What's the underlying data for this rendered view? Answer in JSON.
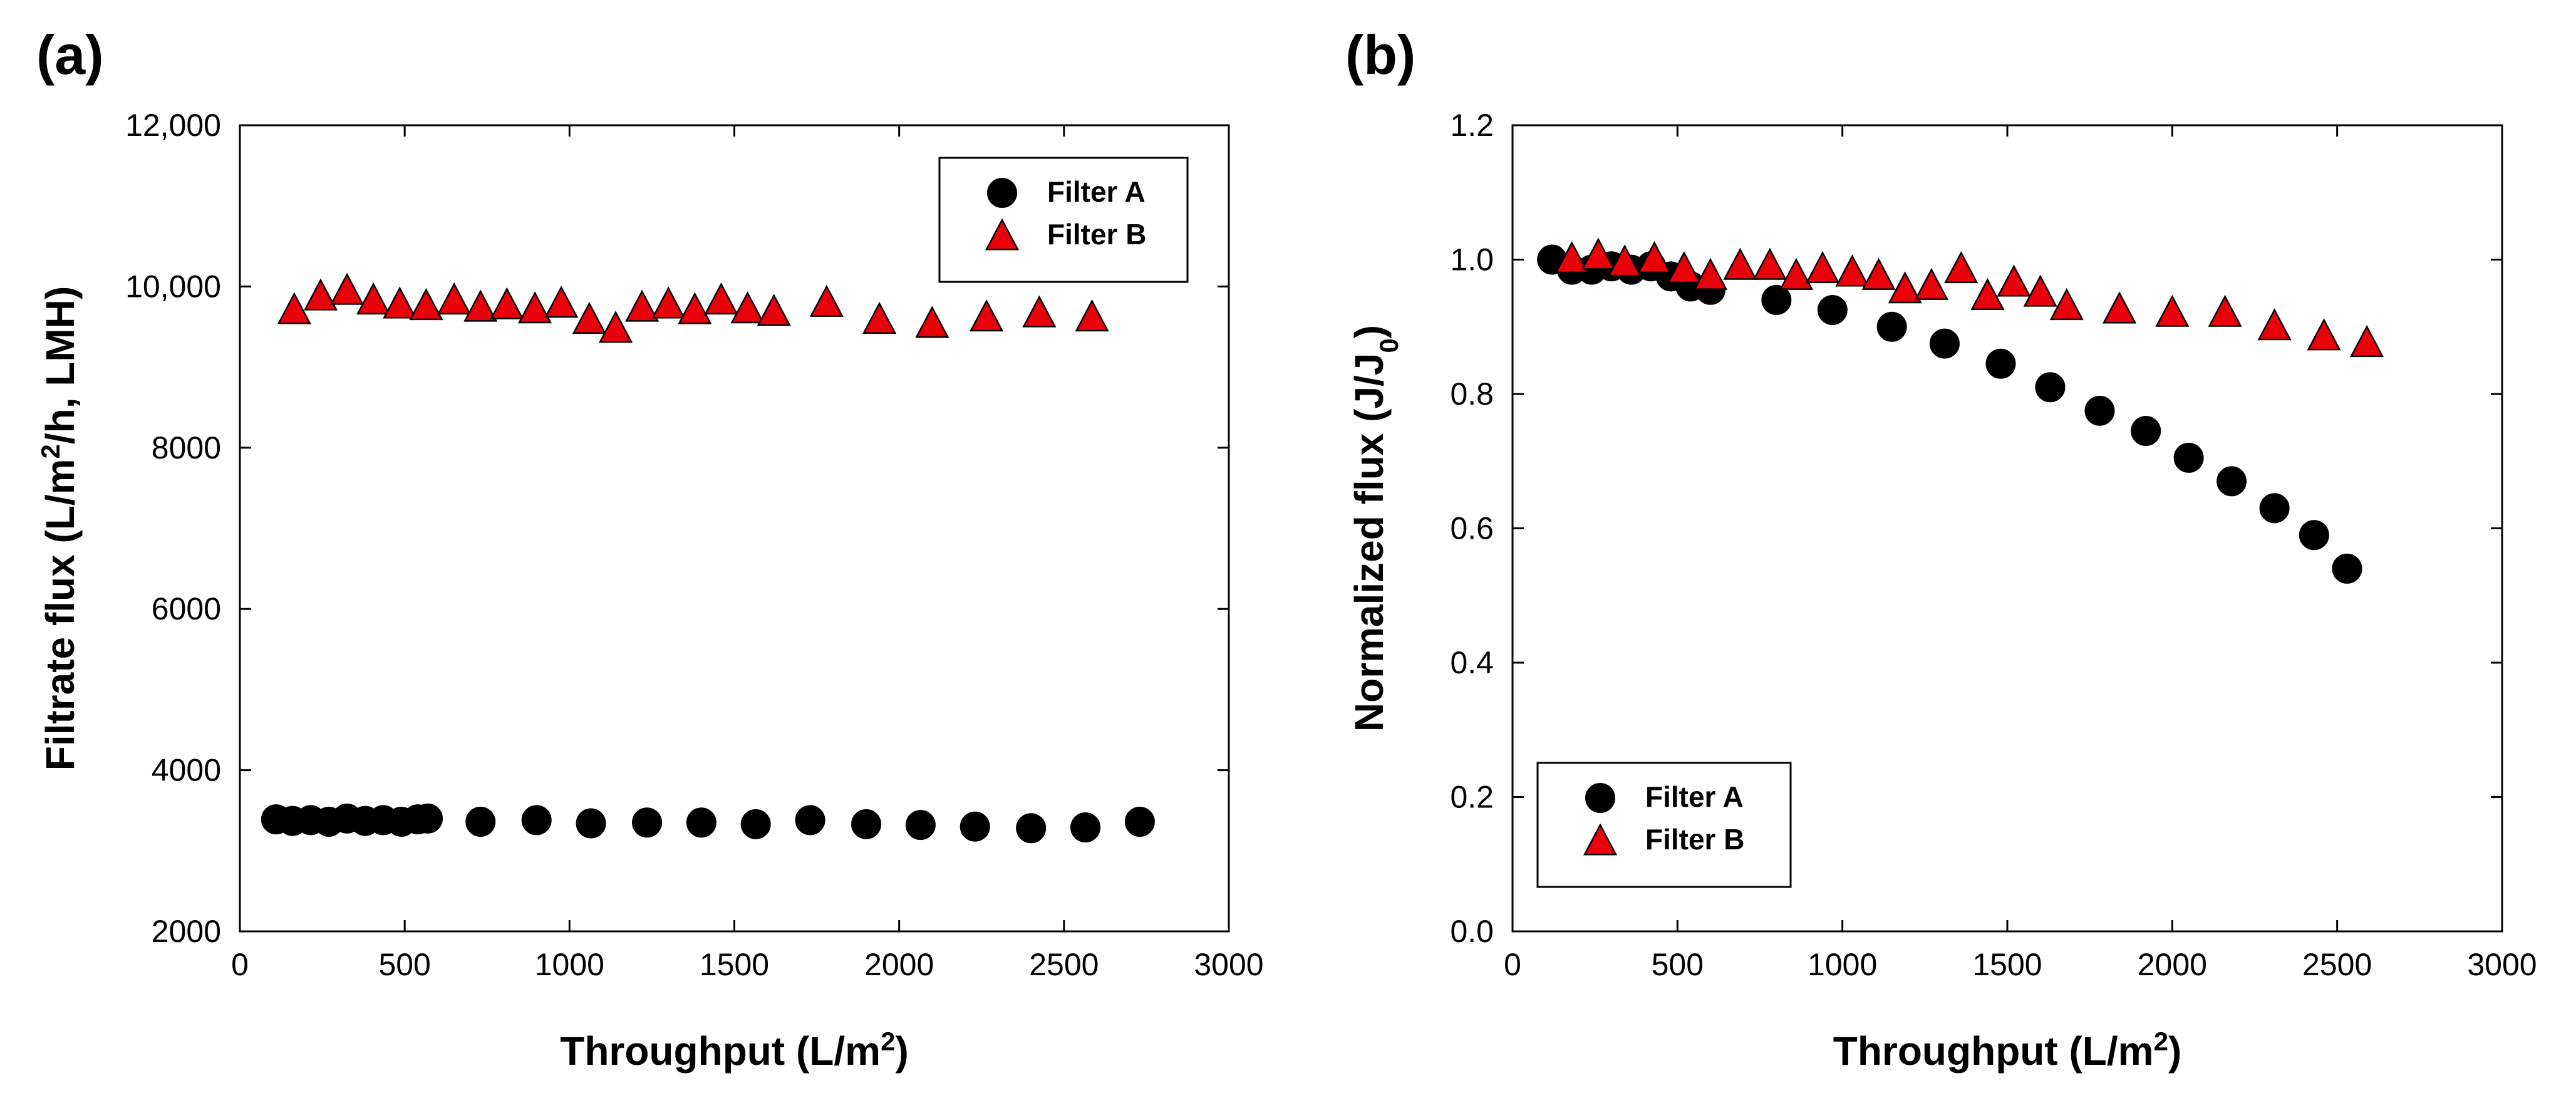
{
  "chart_data": [
    {
      "type": "scatter",
      "panel_label": "(a)",
      "xlabel": {
        "main": "Throughput (L/m",
        "sup": "2",
        "tail": ")"
      },
      "ylabel": {
        "main": "Filtrate flux (L/m",
        "sup": "2",
        "tail": "/h, LMH)"
      },
      "xlim": [
        0,
        3000
      ],
      "ylim": [
        2000,
        12000
      ],
      "xticks": [
        0,
        500,
        1000,
        1500,
        2000,
        2500,
        3000
      ],
      "xtick_labels": [
        "0",
        "500",
        "1000",
        "1500",
        "2000",
        "2500",
        "3000"
      ],
      "yticks": [
        2000,
        4000,
        6000,
        8000,
        10000,
        12000
      ],
      "ytick_labels": [
        "2000",
        "4000",
        "6000",
        "8000",
        "10,000",
        "12,000"
      ],
      "grid": false,
      "legend_position": "top-right",
      "series": [
        {
          "name": "Filter A",
          "marker": "circle",
          "color": "#000000",
          "x": [
            110,
            160,
            215,
            270,
            325,
            380,
            435,
            490,
            540,
            570,
            730,
            900,
            1065,
            1235,
            1400,
            1565,
            1730,
            1900,
            2065,
            2230,
            2400,
            2565,
            2730
          ],
          "y": [
            3390,
            3370,
            3380,
            3360,
            3400,
            3370,
            3380,
            3360,
            3390,
            3400,
            3360,
            3380,
            3340,
            3350,
            3350,
            3330,
            3380,
            3330,
            3320,
            3300,
            3280,
            3290,
            3360
          ]
        },
        {
          "name": "Filter B",
          "marker": "triangle",
          "color": "#e8000b",
          "x": [
            165,
            245,
            325,
            405,
            485,
            565,
            650,
            730,
            810,
            895,
            975,
            1060,
            1140,
            1220,
            1300,
            1380,
            1460,
            1540,
            1620,
            1780,
            1940,
            2100,
            2265,
            2425,
            2585
          ],
          "y": [
            9700,
            9870,
            9940,
            9820,
            9770,
            9750,
            9820,
            9730,
            9760,
            9710,
            9780,
            9580,
            9470,
            9730,
            9770,
            9700,
            9820,
            9710,
            9680,
            9790,
            9580,
            9530,
            9610,
            9660,
            9610
          ]
        }
      ]
    },
    {
      "type": "scatter",
      "panel_label": "(b)",
      "xlabel": {
        "main": "Throughput (L/m",
        "sup": "2",
        "tail": ")"
      },
      "ylabel": {
        "main": "Normalized flux (J/J",
        "sub": "0",
        "tail": ")"
      },
      "xlim": [
        0,
        3000
      ],
      "ylim": [
        0.0,
        1.2
      ],
      "xticks": [
        0,
        500,
        1000,
        1500,
        2000,
        2500,
        3000
      ],
      "xtick_labels": [
        "0",
        "500",
        "1000",
        "1500",
        "2000",
        "2500",
        "3000"
      ],
      "yticks": [
        0.0,
        0.2,
        0.4,
        0.6,
        0.8,
        1.0,
        1.2
      ],
      "ytick_labels": [
        "0.0",
        "0.2",
        "0.4",
        "0.6",
        "0.8",
        "1.0",
        "1.2"
      ],
      "grid": false,
      "legend_position": "bottom-left",
      "series": [
        {
          "name": "Filter A",
          "marker": "circle",
          "color": "#000000",
          "x": [
            120,
            180,
            240,
            300,
            360,
            420,
            480,
            540,
            600,
            800,
            970,
            1150,
            1310,
            1480,
            1630,
            1780,
            1920,
            2050,
            2180,
            2310,
            2430,
            2530
          ],
          "y": [
            1.0,
            0.985,
            0.985,
            0.99,
            0.985,
            0.99,
            0.975,
            0.96,
            0.955,
            0.94,
            0.925,
            0.9,
            0.875,
            0.845,
            0.81,
            0.775,
            0.745,
            0.705,
            0.67,
            0.63,
            0.59,
            0.54
          ]
        },
        {
          "name": "Filter B",
          "marker": "triangle",
          "color": "#e8000b",
          "x": [
            180,
            260,
            340,
            430,
            520,
            600,
            690,
            780,
            860,
            940,
            1030,
            1110,
            1190,
            1270,
            1360,
            1440,
            1520,
            1600,
            1680,
            1840,
            2000,
            2160,
            2310,
            2460,
            2590
          ],
          "y": [
            1.0,
            1.005,
            0.995,
            1.0,
            0.985,
            0.975,
            0.99,
            0.99,
            0.975,
            0.985,
            0.98,
            0.975,
            0.955,
            0.96,
            0.985,
            0.945,
            0.965,
            0.95,
            0.93,
            0.925,
            0.92,
            0.92,
            0.9,
            0.885,
            0.875
          ]
        }
      ]
    }
  ]
}
